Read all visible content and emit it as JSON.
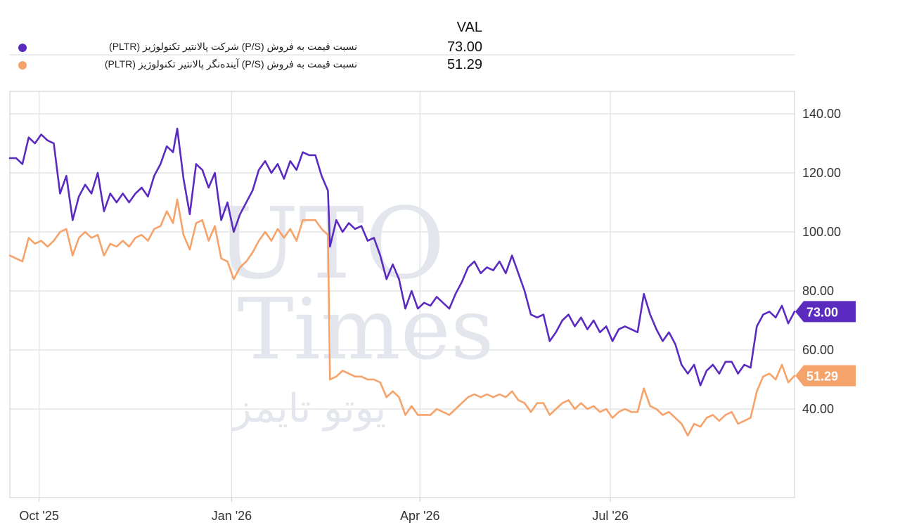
{
  "legend": {
    "value_header": "VAL",
    "items": [
      {
        "label": "نسبت قیمت به فروش (P/S) شرکت پالانتیر تکنولوژیز (PLTR)",
        "value": "73.00",
        "color": "#5b2bbf"
      },
      {
        "label": "نسبت قیمت به فروش (P/S) آینده‌نگر پالانتیر تکنولوژیز (PLTR)",
        "value": "51.29",
        "color": "#f5a36a"
      }
    ]
  },
  "watermark": {
    "line1": "UTO",
    "line2": "Times",
    "line3": "یوتو تایمز"
  },
  "chart_data": {
    "type": "line",
    "x_ticks": [
      "Oct '25",
      "Jan '26",
      "Apr '26",
      "Jul '26"
    ],
    "y_ticks": [
      "40.00",
      "60.00",
      "80.00",
      "100.00",
      "120.00",
      "140.00"
    ],
    "ylim": [
      30,
      150
    ],
    "xlim": [
      "2025-09-17",
      "2026-09-27"
    ],
    "grid": true,
    "y_axis_side": "right",
    "series": [
      {
        "color": "#5b2bbf",
        "last_value": "73.00",
        "points": [
          [
            "2025-09-17",
            125
          ],
          [
            "2025-09-20",
            125
          ],
          [
            "2025-09-23",
            123
          ],
          [
            "2025-09-26",
            132
          ],
          [
            "2025-09-29",
            130
          ],
          [
            "2025-10-02",
            133
          ],
          [
            "2025-10-05",
            131
          ],
          [
            "2025-10-08",
            130
          ],
          [
            "2025-10-11",
            113
          ],
          [
            "2025-10-14",
            119
          ],
          [
            "2025-10-17",
            104
          ],
          [
            "2025-10-20",
            112
          ],
          [
            "2025-10-23",
            116
          ],
          [
            "2025-10-26",
            113
          ],
          [
            "2025-10-29",
            120
          ],
          [
            "2025-11-01",
            107
          ],
          [
            "2025-11-04",
            113
          ],
          [
            "2025-11-07",
            110
          ],
          [
            "2025-11-10",
            113
          ],
          [
            "2025-11-13",
            110
          ],
          [
            "2025-11-16",
            113
          ],
          [
            "2025-11-19",
            115
          ],
          [
            "2025-11-22",
            112
          ],
          [
            "2025-11-25",
            119
          ],
          [
            "2025-11-28",
            123
          ],
          [
            "2025-12-01",
            129
          ],
          [
            "2025-12-04",
            127
          ],
          [
            "2025-12-06",
            135
          ],
          [
            "2025-12-09",
            118
          ],
          [
            "2025-12-12",
            106
          ],
          [
            "2025-12-15",
            123
          ],
          [
            "2025-12-18",
            121
          ],
          [
            "2025-12-21",
            115
          ],
          [
            "2025-12-24",
            120
          ],
          [
            "2025-12-27",
            104
          ],
          [
            "2025-12-30",
            110
          ],
          [
            "2026-01-02",
            100
          ],
          [
            "2026-01-05",
            106
          ],
          [
            "2026-01-08",
            110
          ],
          [
            "2026-01-11",
            114
          ],
          [
            "2026-01-14",
            121
          ],
          [
            "2026-01-17",
            124
          ],
          [
            "2026-01-20",
            120
          ],
          [
            "2026-01-23",
            123
          ],
          [
            "2026-01-26",
            118
          ],
          [
            "2026-01-29",
            124
          ],
          [
            "2026-02-01",
            121
          ],
          [
            "2026-02-04",
            127
          ],
          [
            "2026-02-07",
            126
          ],
          [
            "2026-02-10",
            126
          ],
          [
            "2026-02-13",
            119
          ],
          [
            "2026-02-16",
            114
          ],
          [
            "2026-02-17",
            95
          ],
          [
            "2026-02-20",
            104
          ],
          [
            "2026-02-23",
            100
          ],
          [
            "2026-02-26",
            103
          ],
          [
            "2026-03-01",
            101
          ],
          [
            "2026-03-04",
            102
          ],
          [
            "2026-03-07",
            97
          ],
          [
            "2026-03-10",
            98
          ],
          [
            "2026-03-13",
            92
          ],
          [
            "2026-03-16",
            84
          ],
          [
            "2026-03-19",
            89
          ],
          [
            "2026-03-22",
            84
          ],
          [
            "2026-03-25",
            74
          ],
          [
            "2026-03-28",
            80
          ],
          [
            "2026-03-31",
            74
          ],
          [
            "2026-04-03",
            76
          ],
          [
            "2026-04-06",
            75
          ],
          [
            "2026-04-09",
            78
          ],
          [
            "2026-04-12",
            76
          ],
          [
            "2026-04-15",
            74
          ],
          [
            "2026-04-18",
            79
          ],
          [
            "2026-04-21",
            83
          ],
          [
            "2026-04-24",
            88
          ],
          [
            "2026-04-27",
            90
          ],
          [
            "2026-04-30",
            86
          ],
          [
            "2026-05-03",
            88
          ],
          [
            "2026-05-06",
            87
          ],
          [
            "2026-05-09",
            90
          ],
          [
            "2026-05-12",
            86
          ],
          [
            "2026-05-15",
            92
          ],
          [
            "2026-05-18",
            86
          ],
          [
            "2026-05-21",
            80
          ],
          [
            "2026-05-24",
            72
          ],
          [
            "2026-05-27",
            71
          ],
          [
            "2026-05-30",
            72
          ],
          [
            "2026-06-02",
            63
          ],
          [
            "2026-06-05",
            66
          ],
          [
            "2026-06-08",
            70
          ],
          [
            "2026-06-11",
            72
          ],
          [
            "2026-06-14",
            68
          ],
          [
            "2026-06-17",
            71
          ],
          [
            "2026-06-20",
            67
          ],
          [
            "2026-06-23",
            70
          ],
          [
            "2026-06-26",
            66
          ],
          [
            "2026-06-29",
            68
          ],
          [
            "2026-07-02",
            63
          ],
          [
            "2026-07-05",
            67
          ],
          [
            "2026-07-08",
            68
          ],
          [
            "2026-07-11",
            67
          ],
          [
            "2026-07-14",
            66
          ],
          [
            "2026-07-17",
            79
          ],
          [
            "2026-07-20",
            72
          ],
          [
            "2026-07-23",
            67
          ],
          [
            "2026-07-26",
            63
          ],
          [
            "2026-07-29",
            66
          ],
          [
            "2026-08-01",
            62
          ],
          [
            "2026-08-04",
            55
          ],
          [
            "2026-08-07",
            52
          ],
          [
            "2026-08-10",
            55
          ],
          [
            "2026-08-13",
            48
          ],
          [
            "2026-08-16",
            53
          ],
          [
            "2026-08-19",
            55
          ],
          [
            "2026-08-22",
            52
          ],
          [
            "2026-08-25",
            56
          ],
          [
            "2026-08-28",
            56
          ],
          [
            "2026-08-31",
            52
          ],
          [
            "2026-09-03",
            55
          ],
          [
            "2026-09-06",
            54
          ],
          [
            "2026-09-09",
            68
          ],
          [
            "2026-09-12",
            72
          ],
          [
            "2026-09-15",
            73
          ],
          [
            "2026-09-18",
            71
          ],
          [
            "2026-09-21",
            75
          ],
          [
            "2026-09-24",
            69
          ],
          [
            "2026-09-27",
            73
          ]
        ]
      },
      {
        "color": "#f5a36a",
        "last_value": "51.29",
        "points": [
          [
            "2025-09-17",
            92
          ],
          [
            "2025-09-20",
            91
          ],
          [
            "2025-09-23",
            90
          ],
          [
            "2025-09-26",
            98
          ],
          [
            "2025-09-29",
            96
          ],
          [
            "2025-10-02",
            97
          ],
          [
            "2025-10-05",
            95
          ],
          [
            "2025-10-08",
            97
          ],
          [
            "2025-10-11",
            100
          ],
          [
            "2025-10-14",
            101
          ],
          [
            "2025-10-17",
            92
          ],
          [
            "2025-10-20",
            98
          ],
          [
            "2025-10-23",
            100
          ],
          [
            "2025-10-26",
            98
          ],
          [
            "2025-10-29",
            99
          ],
          [
            "2025-11-01",
            92
          ],
          [
            "2025-11-04",
            96
          ],
          [
            "2025-11-07",
            95
          ],
          [
            "2025-11-10",
            97
          ],
          [
            "2025-11-13",
            95
          ],
          [
            "2025-11-16",
            98
          ],
          [
            "2025-11-19",
            99
          ],
          [
            "2025-11-22",
            97
          ],
          [
            "2025-11-25",
            101
          ],
          [
            "2025-11-28",
            102
          ],
          [
            "2025-12-01",
            107
          ],
          [
            "2025-12-04",
            103
          ],
          [
            "2025-12-06",
            111
          ],
          [
            "2025-12-09",
            99
          ],
          [
            "2025-12-12",
            94
          ],
          [
            "2025-12-15",
            103
          ],
          [
            "2025-12-18",
            104
          ],
          [
            "2025-12-21",
            97
          ],
          [
            "2025-12-24",
            102
          ],
          [
            "2025-12-27",
            91
          ],
          [
            "2025-12-30",
            90
          ],
          [
            "2026-01-02",
            84
          ],
          [
            "2026-01-05",
            88
          ],
          [
            "2026-01-08",
            90
          ],
          [
            "2026-01-11",
            93
          ],
          [
            "2026-01-14",
            97
          ],
          [
            "2026-01-17",
            100
          ],
          [
            "2026-01-20",
            97
          ],
          [
            "2026-01-23",
            101
          ],
          [
            "2026-01-26",
            98
          ],
          [
            "2026-01-29",
            101
          ],
          [
            "2026-02-01",
            97
          ],
          [
            "2026-02-04",
            104
          ],
          [
            "2026-02-07",
            104
          ],
          [
            "2026-02-10",
            104
          ],
          [
            "2026-02-13",
            101
          ],
          [
            "2026-02-16",
            99
          ],
          [
            "2026-02-17",
            50
          ],
          [
            "2026-02-20",
            51
          ],
          [
            "2026-02-23",
            53
          ],
          [
            "2026-02-26",
            52
          ],
          [
            "2026-03-01",
            51
          ],
          [
            "2026-03-04",
            51
          ],
          [
            "2026-03-07",
            50
          ],
          [
            "2026-03-10",
            50
          ],
          [
            "2026-03-13",
            49
          ],
          [
            "2026-03-16",
            44
          ],
          [
            "2026-03-19",
            46
          ],
          [
            "2026-03-22",
            44
          ],
          [
            "2026-03-25",
            38
          ],
          [
            "2026-03-28",
            41
          ],
          [
            "2026-03-31",
            38
          ],
          [
            "2026-04-03",
            38
          ],
          [
            "2026-04-06",
            38
          ],
          [
            "2026-04-09",
            40
          ],
          [
            "2026-04-12",
            39
          ],
          [
            "2026-04-15",
            38
          ],
          [
            "2026-04-18",
            40
          ],
          [
            "2026-04-21",
            42
          ],
          [
            "2026-04-24",
            44
          ],
          [
            "2026-04-27",
            45
          ],
          [
            "2026-04-30",
            44
          ],
          [
            "2026-05-03",
            45
          ],
          [
            "2026-05-06",
            44
          ],
          [
            "2026-05-09",
            45
          ],
          [
            "2026-05-12",
            44
          ],
          [
            "2026-05-15",
            46
          ],
          [
            "2026-05-18",
            43
          ],
          [
            "2026-05-21",
            42
          ],
          [
            "2026-05-24",
            39
          ],
          [
            "2026-05-27",
            42
          ],
          [
            "2026-05-30",
            42
          ],
          [
            "2026-06-02",
            38
          ],
          [
            "2026-06-05",
            40
          ],
          [
            "2026-06-08",
            42
          ],
          [
            "2026-06-11",
            43
          ],
          [
            "2026-06-14",
            40
          ],
          [
            "2026-06-17",
            42
          ],
          [
            "2026-06-20",
            40
          ],
          [
            "2026-06-23",
            41
          ],
          [
            "2026-06-26",
            39
          ],
          [
            "2026-06-29",
            40
          ],
          [
            "2026-07-02",
            37
          ],
          [
            "2026-07-05",
            39
          ],
          [
            "2026-07-08",
            40
          ],
          [
            "2026-07-11",
            39
          ],
          [
            "2026-07-14",
            39
          ],
          [
            "2026-07-17",
            47
          ],
          [
            "2026-07-20",
            41
          ],
          [
            "2026-07-23",
            40
          ],
          [
            "2026-07-26",
            38
          ],
          [
            "2026-07-29",
            39
          ],
          [
            "2026-08-01",
            37
          ],
          [
            "2026-08-04",
            35
          ],
          [
            "2026-08-07",
            31
          ],
          [
            "2026-08-10",
            35
          ],
          [
            "2026-08-13",
            34
          ],
          [
            "2026-08-16",
            37
          ],
          [
            "2026-08-19",
            38
          ],
          [
            "2026-08-22",
            36
          ],
          [
            "2026-08-25",
            38
          ],
          [
            "2026-08-28",
            39
          ],
          [
            "2026-08-31",
            35
          ],
          [
            "2026-09-03",
            36
          ],
          [
            "2026-09-06",
            37
          ],
          [
            "2026-09-09",
            46
          ],
          [
            "2026-09-12",
            51
          ],
          [
            "2026-09-15",
            52
          ],
          [
            "2026-09-18",
            50
          ],
          [
            "2026-09-21",
            55
          ],
          [
            "2026-09-24",
            49
          ],
          [
            "2026-09-27",
            51.29
          ]
        ]
      }
    ]
  }
}
